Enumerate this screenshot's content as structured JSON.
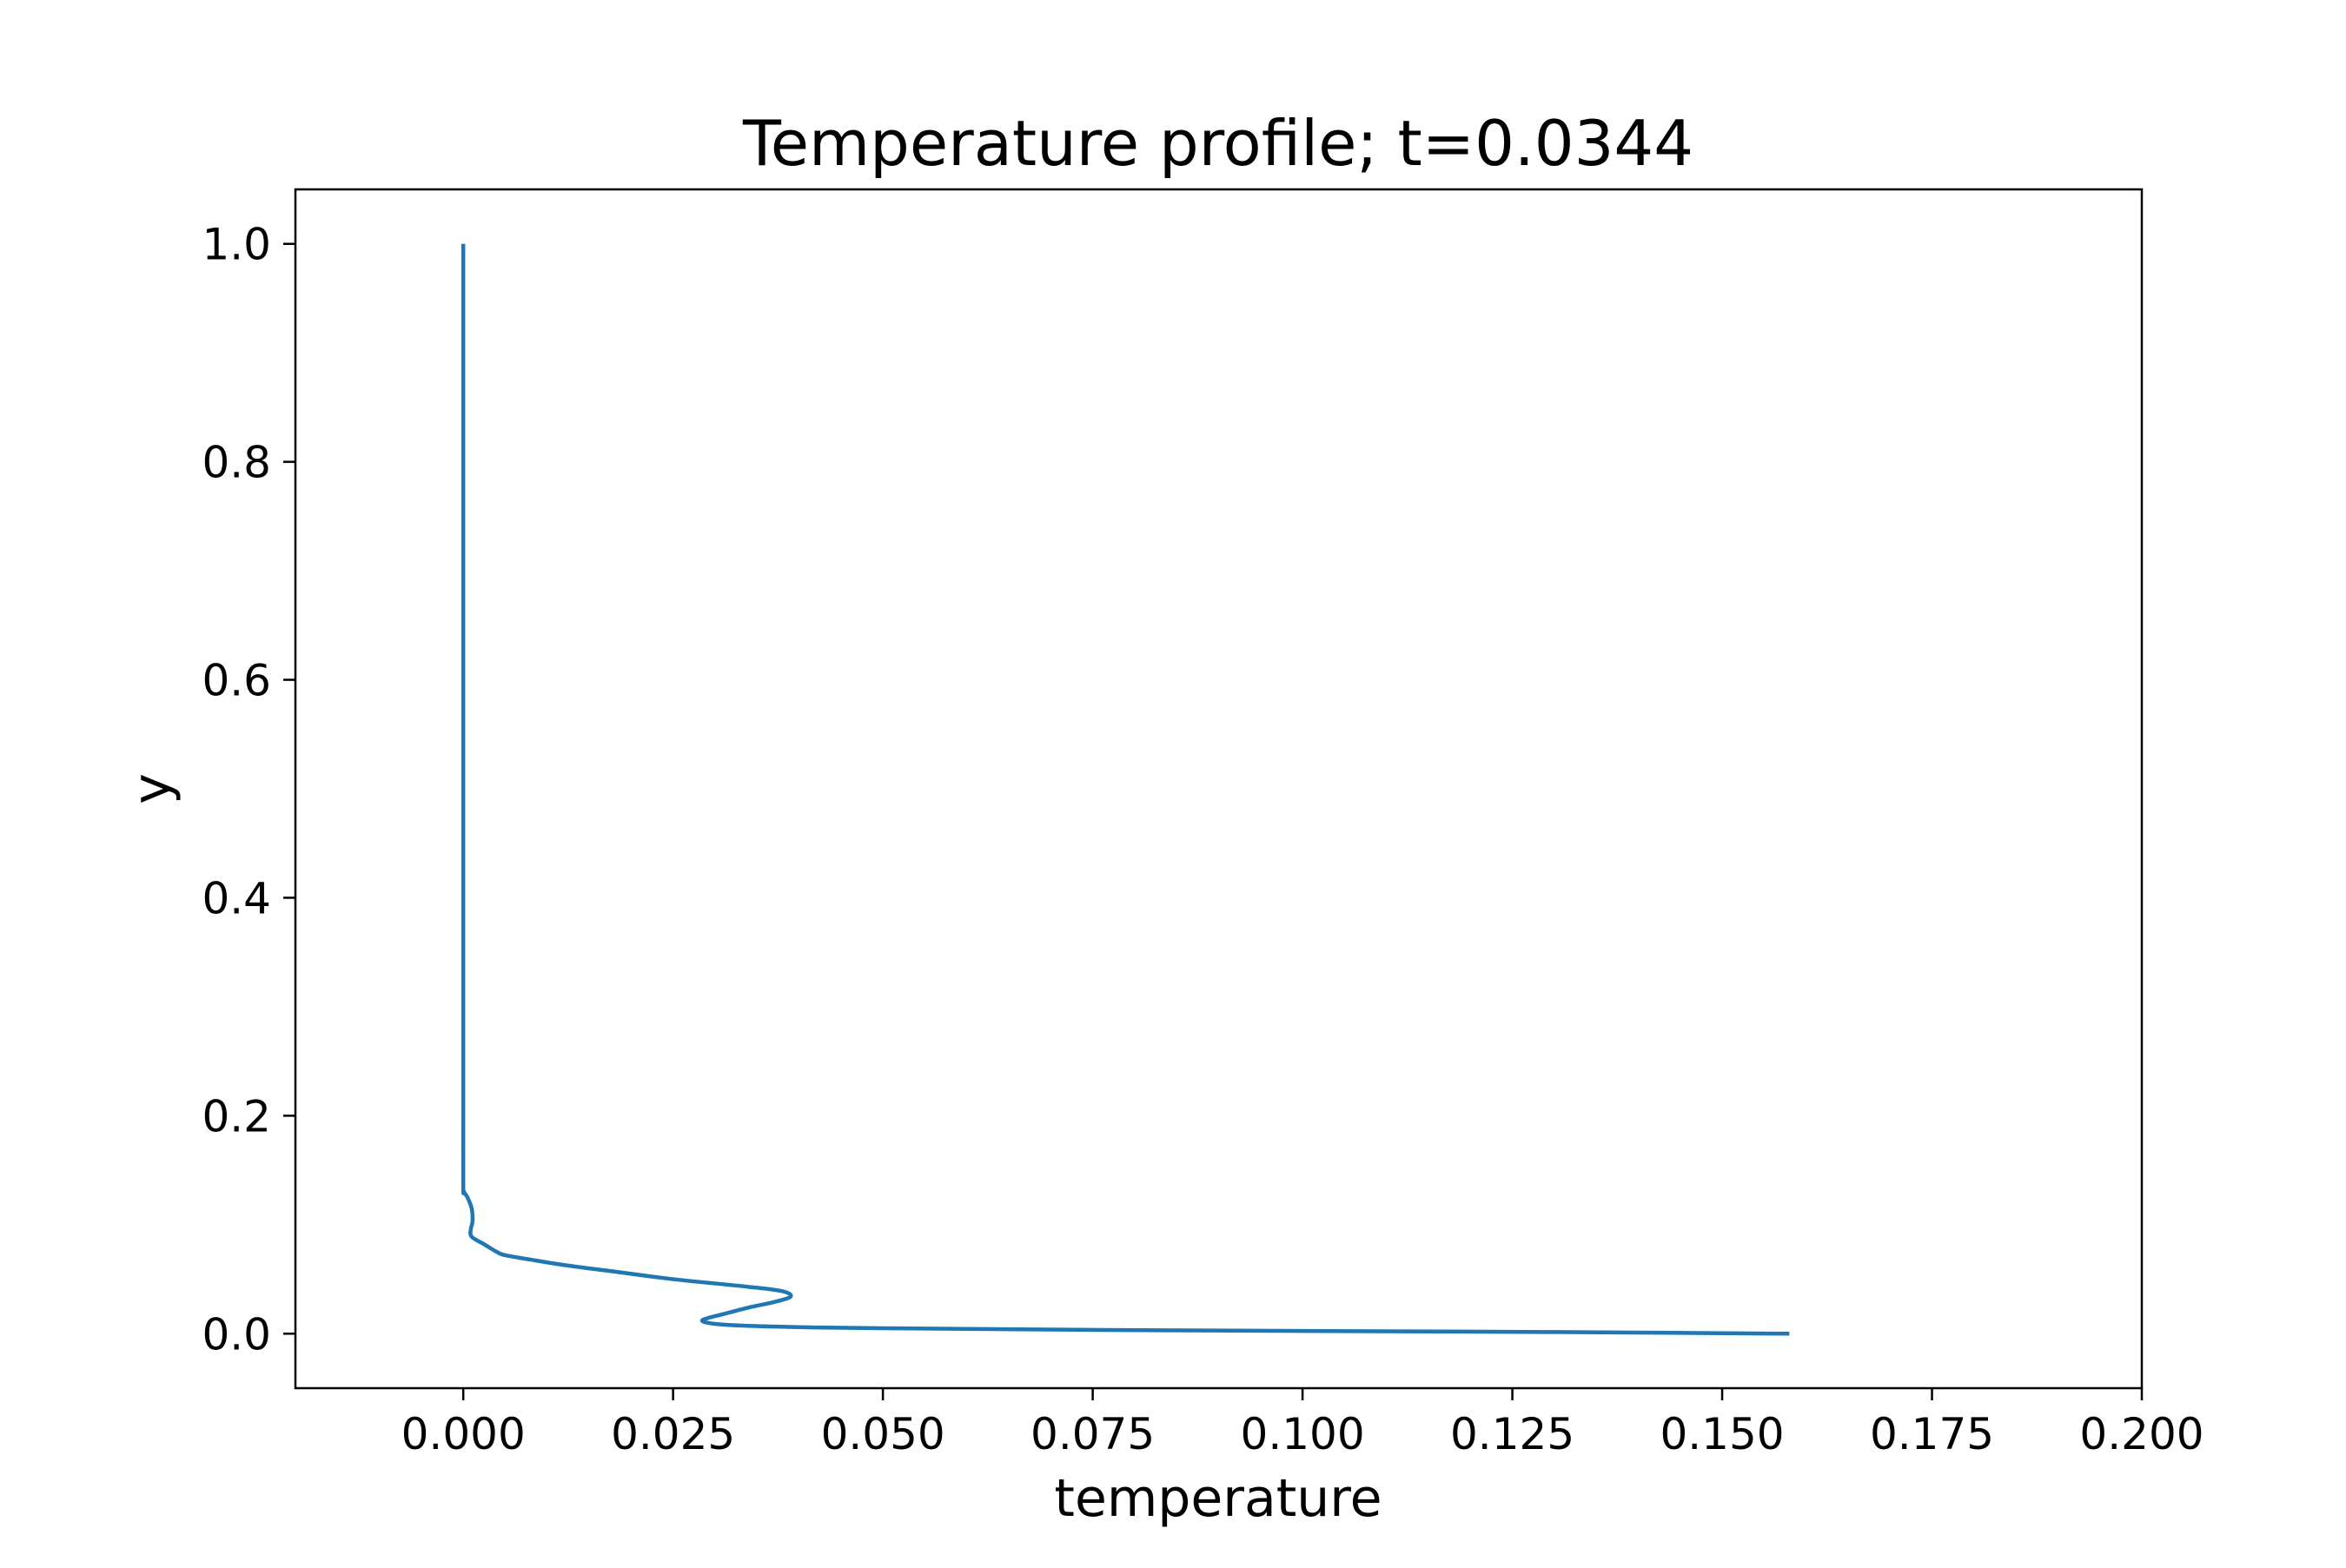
{
  "chart_data": {
    "type": "line",
    "title": "Temperature profile; t=0.0344",
    "xlabel": "temperature",
    "ylabel": "y",
    "xlim": [
      -0.02,
      0.2
    ],
    "ylim": [
      -0.05,
      1.05
    ],
    "xticks": [
      "0.000",
      "0.025",
      "0.050",
      "0.075",
      "0.100",
      "0.125",
      "0.150",
      "0.175",
      "0.200"
    ],
    "yticks": [
      "0.0",
      "0.2",
      "0.4",
      "0.6",
      "0.8",
      "1.0"
    ],
    "xtick_values": [
      0.0,
      0.025,
      0.05,
      0.075,
      0.1,
      0.125,
      0.15,
      0.175,
      0.2
    ],
    "ytick_values": [
      0.0,
      0.2,
      0.4,
      0.6,
      0.8,
      1.0
    ],
    "grid": false,
    "series": [
      {
        "color": "#1f77b4",
        "points": [
          [
            0.158,
            0.0
          ],
          [
            0.13,
            0.0015
          ],
          [
            0.1,
            0.0025
          ],
          [
            0.075,
            0.0035
          ],
          [
            0.05,
            0.005
          ],
          [
            0.04,
            0.006
          ],
          [
            0.033,
            0.0075
          ],
          [
            0.03,
            0.009
          ],
          [
            0.0285,
            0.0115
          ],
          [
            0.029,
            0.014
          ],
          [
            0.031,
            0.018
          ],
          [
            0.034,
            0.024
          ],
          [
            0.037,
            0.029
          ],
          [
            0.039,
            0.034
          ],
          [
            0.038,
            0.039
          ],
          [
            0.034,
            0.043
          ],
          [
            0.025,
            0.05
          ],
          [
            0.018,
            0.057
          ],
          [
            0.012,
            0.063
          ],
          [
            0.008,
            0.068
          ],
          [
            0.005,
            0.072
          ],
          [
            0.004,
            0.075
          ],
          [
            0.0025,
            0.082
          ],
          [
            0.001,
            0.089
          ],
          [
            0.0009,
            0.096
          ],
          [
            0.0011,
            0.103
          ],
          [
            0.001,
            0.115
          ],
          [
            0.0005,
            0.125
          ],
          [
            0.0001,
            0.13
          ],
          [
            0.0,
            0.135
          ],
          [
            0.0,
            0.2
          ],
          [
            0.0,
            0.4
          ],
          [
            0.0,
            0.6
          ],
          [
            0.0,
            0.8
          ],
          [
            0.0,
            1.0
          ]
        ]
      }
    ]
  }
}
